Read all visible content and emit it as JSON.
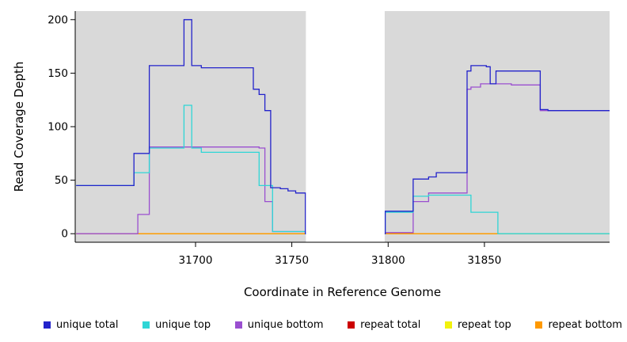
{
  "chart_data": {
    "type": "line",
    "title": "",
    "xlabel": "Coordinate in Reference Genome",
    "ylabel": "Read Coverage Depth",
    "xlim": [
      31637.5,
      31915
    ],
    "ylim": [
      -8,
      208
    ],
    "x_ticks": [
      31700,
      31750,
      31800,
      31850
    ],
    "x_tick_labels": [
      "31700",
      "31750",
      "31800",
      "31850"
    ],
    "y_ticks": [
      0,
      50,
      100,
      150,
      200
    ],
    "y_tick_labels": [
      "0",
      "50",
      "100",
      "150",
      "200"
    ],
    "grid": false,
    "legend_position": "bottom",
    "plot_background": "#d9d9d9",
    "masked_region": {
      "x_start": 31757,
      "x_end": 31798.5,
      "color": "#ffffff"
    },
    "series": [
      {
        "name": "repeat total",
        "color": "#cc0000",
        "points": [
          [
            31638,
            0
          ],
          [
            31915,
            0
          ]
        ]
      },
      {
        "name": "repeat top",
        "color": "#f2f20c",
        "points": [
          [
            31638,
            0
          ],
          [
            31915,
            0
          ]
        ]
      },
      {
        "name": "repeat bottom",
        "color": "#ff9900",
        "points": [
          [
            31638,
            0
          ],
          [
            31915,
            0
          ]
        ]
      },
      {
        "name": "unique bottom",
        "color": "#9a4fd0",
        "points": [
          [
            31638,
            0
          ],
          [
            31670,
            0
          ],
          [
            31670,
            18
          ],
          [
            31676,
            18
          ],
          [
            31676,
            81
          ],
          [
            31733,
            81
          ],
          [
            31733,
            80
          ],
          [
            31736,
            80
          ],
          [
            31736,
            30
          ],
          [
            31740,
            30
          ],
          [
            31740,
            2
          ],
          [
            31757,
            2
          ],
          [
            31757,
            0
          ],
          [
            31798.5,
            0
          ],
          [
            31798.5,
            1
          ],
          [
            31813,
            1
          ],
          [
            31813,
            30
          ],
          [
            31821,
            30
          ],
          [
            31821,
            38
          ],
          [
            31841,
            38
          ],
          [
            31841,
            135
          ],
          [
            31843,
            135
          ],
          [
            31843,
            137
          ],
          [
            31848,
            137
          ],
          [
            31848,
            140
          ],
          [
            31864,
            140
          ],
          [
            31864,
            139
          ],
          [
            31879,
            139
          ],
          [
            31879,
            115
          ],
          [
            31915,
            115
          ]
        ]
      },
      {
        "name": "unique top",
        "color": "#2fd6d6",
        "points": [
          [
            31638,
            45
          ],
          [
            31668,
            45
          ],
          [
            31668,
            57
          ],
          [
            31676,
            57
          ],
          [
            31676,
            80
          ],
          [
            31694,
            80
          ],
          [
            31694,
            120
          ],
          [
            31698,
            120
          ],
          [
            31698,
            80
          ],
          [
            31703,
            80
          ],
          [
            31703,
            76
          ],
          [
            31733,
            76
          ],
          [
            31733,
            45
          ],
          [
            31740,
            45
          ],
          [
            31740,
            2
          ],
          [
            31757,
            2
          ],
          [
            31757,
            0
          ],
          [
            31798.5,
            0
          ],
          [
            31798.5,
            20
          ],
          [
            31813,
            20
          ],
          [
            31813,
            35
          ],
          [
            31821,
            35
          ],
          [
            31821,
            36
          ],
          [
            31843,
            36
          ],
          [
            31843,
            20
          ],
          [
            31857,
            20
          ],
          [
            31857,
            0
          ],
          [
            31915,
            0
          ]
        ]
      },
      {
        "name": "unique total",
        "color": "#2323cb",
        "points": [
          [
            31638,
            45
          ],
          [
            31668,
            45
          ],
          [
            31668,
            75
          ],
          [
            31676,
            75
          ],
          [
            31676,
            157
          ],
          [
            31694,
            157
          ],
          [
            31694,
            200
          ],
          [
            31698,
            200
          ],
          [
            31698,
            157
          ],
          [
            31703,
            157
          ],
          [
            31703,
            155
          ],
          [
            31730,
            155
          ],
          [
            31730,
            135
          ],
          [
            31733,
            135
          ],
          [
            31733,
            130
          ],
          [
            31736,
            130
          ],
          [
            31736,
            115
          ],
          [
            31739,
            115
          ],
          [
            31739,
            43
          ],
          [
            31744,
            43
          ],
          [
            31744,
            42
          ],
          [
            31748,
            42
          ],
          [
            31748,
            40
          ],
          [
            31752,
            40
          ],
          [
            31752,
            38
          ],
          [
            31757,
            38
          ],
          [
            31757,
            0
          ],
          [
            31798.5,
            0
          ],
          [
            31798.5,
            21
          ],
          [
            31813,
            21
          ],
          [
            31813,
            51
          ],
          [
            31821,
            51
          ],
          [
            31821,
            53
          ],
          [
            31825,
            53
          ],
          [
            31825,
            57
          ],
          [
            31841,
            57
          ],
          [
            31841,
            152
          ],
          [
            31843,
            152
          ],
          [
            31843,
            157
          ],
          [
            31851,
            157
          ],
          [
            31851,
            156
          ],
          [
            31853,
            156
          ],
          [
            31853,
            140
          ],
          [
            31856,
            140
          ],
          [
            31856,
            152
          ],
          [
            31879,
            152
          ],
          [
            31879,
            116
          ],
          [
            31883,
            116
          ],
          [
            31883,
            115
          ],
          [
            31915,
            115
          ]
        ]
      }
    ],
    "legend": [
      {
        "label": "unique total",
        "color": "#2323cb"
      },
      {
        "label": "unique top",
        "color": "#2fd6d6"
      },
      {
        "label": "unique bottom",
        "color": "#9a4fd0"
      },
      {
        "label": "repeat total",
        "color": "#cc0000"
      },
      {
        "label": "repeat top",
        "color": "#f2f20c"
      },
      {
        "label": "repeat bottom",
        "color": "#ff9900"
      }
    ]
  }
}
